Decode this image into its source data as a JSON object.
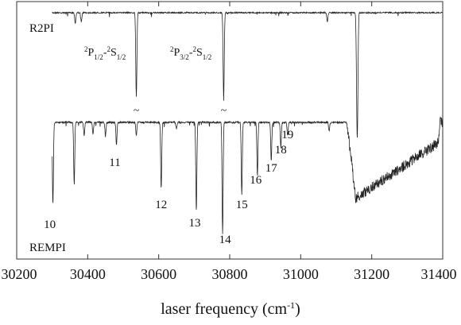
{
  "chart_data": {
    "type": "line",
    "xlabel": "laser frequency (cm⁻¹)",
    "xlim": [
      30200,
      31400
    ],
    "x_ticks": [
      30200,
      30400,
      30600,
      30800,
      31000,
      31200,
      31400
    ],
    "grid": false,
    "legend": "none",
    "series": [
      {
        "name": "R2PI",
        "dips": [
          {
            "x": 30365,
            "depth": 0.12
          },
          {
            "x": 30382,
            "depth": 0.1
          },
          {
            "x": 30537,
            "depth": 0.95,
            "label": "²P₁/₂-²S₁/₂"
          },
          {
            "x": 30783,
            "depth": 0.95,
            "label": "²P₃/₂-²S₁/₂"
          },
          {
            "x": 31075,
            "depth": 0.1
          },
          {
            "x": 31158,
            "depth": 0.7
          },
          {
            "x": 31160,
            "depth": 1.0
          }
        ]
      },
      {
        "name": "REMPI",
        "peaks": [
          {
            "label": "10",
            "x": 30302,
            "depth": 0.74
          },
          {
            "label": "11",
            "x": 30481,
            "depth": 0.2
          },
          {
            "label": "12",
            "x": 30607,
            "depth": 0.6
          },
          {
            "label": "13",
            "x": 30706,
            "depth": 0.8
          },
          {
            "label": "14",
            "x": 30780,
            "depth": 1.0
          },
          {
            "label": "15",
            "x": 30834,
            "depth": 0.65
          },
          {
            "label": "16",
            "x": 30878,
            "depth": 0.48
          },
          {
            "label": "17",
            "x": 30917,
            "depth": 0.34
          },
          {
            "label": "18",
            "x": 30944,
            "depth": 0.22
          },
          {
            "label": "19",
            "x": 30963,
            "depth": 0.12
          }
        ],
        "extra_dips": [
          {
            "x": 30362,
            "depth": 0.56
          },
          {
            "x": 30390,
            "depth": 0.12
          },
          {
            "x": 30415,
            "depth": 0.1
          },
          {
            "x": 30450,
            "depth": 0.12
          },
          {
            "x": 30537,
            "depth": 0.12
          },
          {
            "x": 30650,
            "depth": 0.06
          },
          {
            "x": 31080,
            "depth": 0.08
          }
        ],
        "continuum_start": 31130
      }
    ],
    "annotations": {
      "break_marks": [
        {
          "x": 30537,
          "glyph": "~"
        },
        {
          "x": 30783,
          "glyph": "~"
        }
      ]
    }
  },
  "labels": {
    "r2pi": "R2PI",
    "rempi": "REMPI",
    "xlabel_main": "laser frequency (cm",
    "xlabel_sup": "-1",
    "xlabel_end": ")",
    "trans1": [
      "2",
      "P",
      "1/2",
      "-",
      "2",
      "S",
      "1/2"
    ],
    "trans2": [
      "2",
      "P",
      "3/2",
      "-",
      "2",
      "S",
      "1/2"
    ]
  },
  "colors": {
    "axis": "#333333",
    "trace": "#222222"
  }
}
